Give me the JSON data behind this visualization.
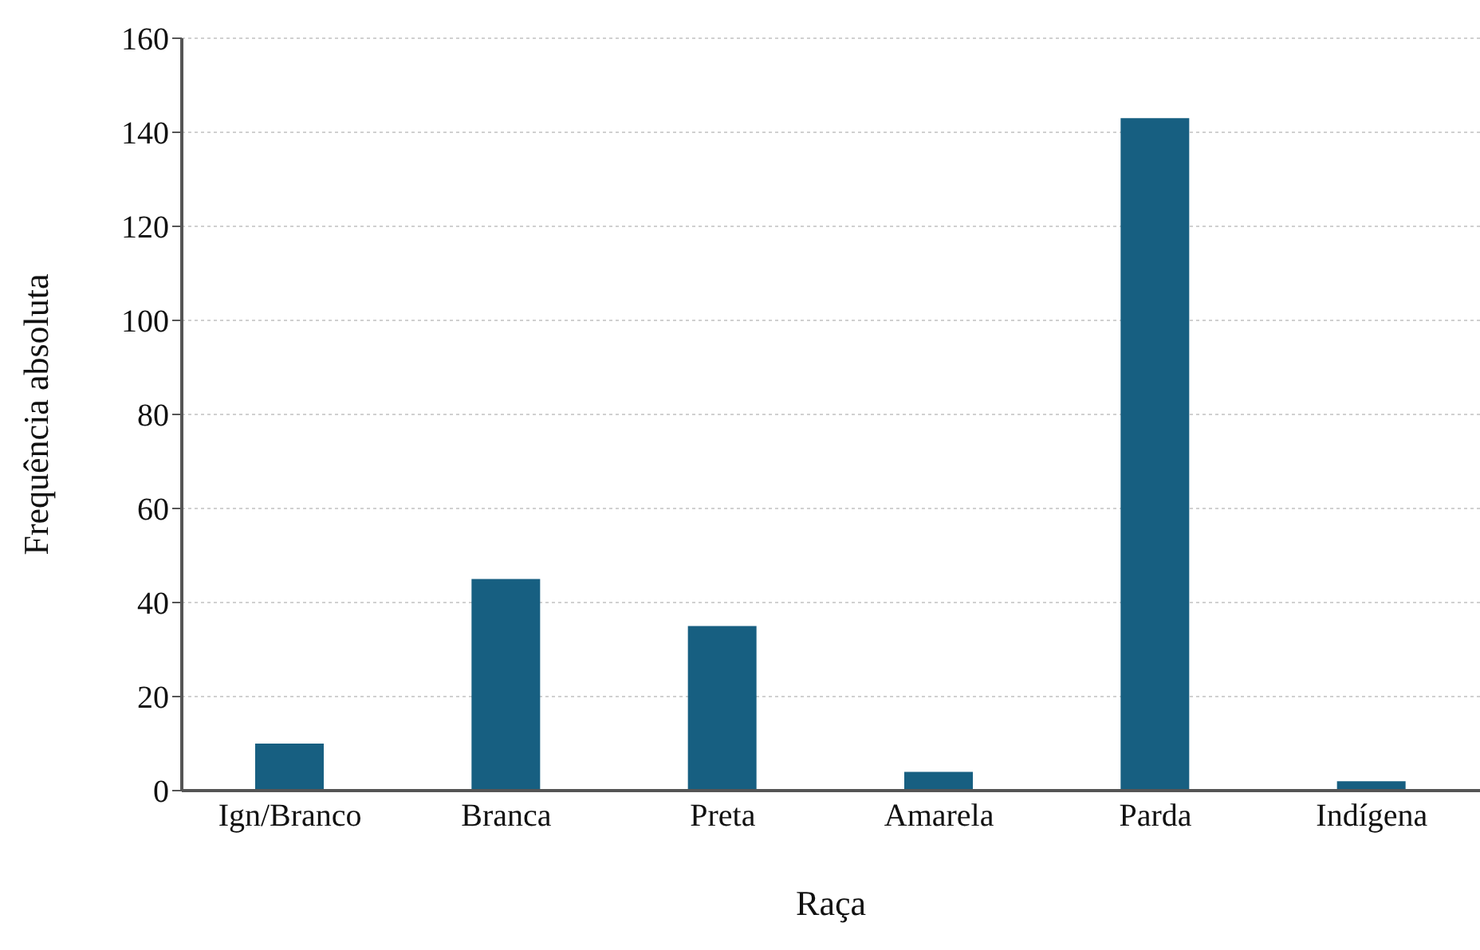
{
  "chart_data": {
    "type": "bar",
    "xlabel": "Raça",
    "ylabel": "Frequência absoluta",
    "categories": [
      "Ign/Branco",
      "Branca",
      "Preta",
      "Amarela",
      "Parda",
      "Indígena"
    ],
    "values": [
      10,
      45,
      35,
      4,
      143,
      2
    ],
    "color": "#175f81",
    "ylim": [
      0,
      160
    ],
    "yticks": [
      0,
      20,
      40,
      60,
      80,
      100,
      120,
      140,
      160
    ],
    "grid": "y"
  }
}
